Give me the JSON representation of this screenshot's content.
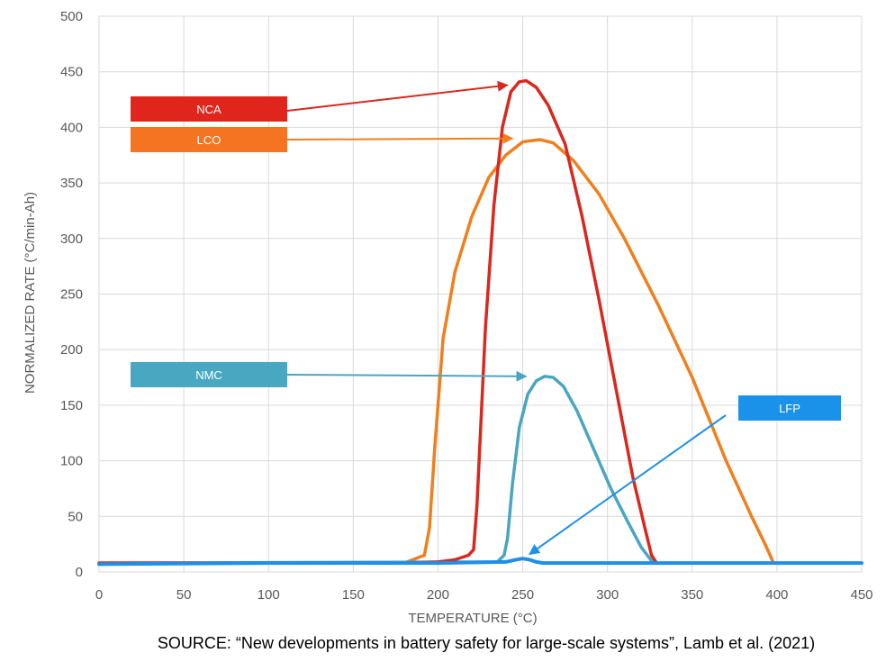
{
  "chart_data": {
    "type": "line",
    "title": "",
    "xlabel": "TEMPERATURE (°C)",
    "ylabel": "NORMALIZED RATE (°C/min-Ah)",
    "xlim": [
      0,
      450
    ],
    "ylim": [
      0,
      500
    ],
    "x_ticks": [
      0,
      50,
      100,
      150,
      200,
      250,
      300,
      350,
      400,
      450
    ],
    "y_ticks": [
      0,
      50,
      100,
      150,
      200,
      250,
      300,
      350,
      400,
      450,
      500
    ],
    "grid": true,
    "legend": "callout labels with arrows",
    "source": "SOURCE: “New developments in battery safety for large-scale systems”, Lamb et al. (2021)",
    "series": [
      {
        "name": "NCA",
        "color": "#d9281e",
        "label_color": "#e0261c",
        "x": [
          0,
          180,
          200,
          210,
          218,
          221,
          223,
          228,
          233,
          238,
          243,
          248,
          252,
          258,
          265,
          275,
          285,
          295,
          305,
          315,
          322,
          326,
          329
        ],
        "y": [
          8,
          8,
          9,
          11,
          15,
          20,
          60,
          220,
          330,
          400,
          432,
          441,
          442,
          436,
          420,
          385,
          320,
          245,
          165,
          85,
          40,
          15,
          8
        ]
      },
      {
        "name": "LCO",
        "color": "#f07f1d",
        "label_color": "#f57421",
        "x": [
          0,
          180,
          192,
          195,
          198,
          203,
          210,
          220,
          230,
          240,
          250,
          260,
          268,
          280,
          295,
          310,
          330,
          350,
          370,
          385,
          393,
          398
        ],
        "y": [
          8,
          8,
          15,
          40,
          110,
          210,
          270,
          320,
          355,
          375,
          387,
          389,
          386,
          370,
          340,
          300,
          240,
          175,
          100,
          50,
          25,
          8
        ]
      },
      {
        "name": "NMC",
        "color": "#4aa6c0",
        "label_color": "#48a8c1",
        "x": [
          0,
          235,
          239,
          241,
          244,
          248,
          253,
          258,
          263,
          268,
          274,
          282,
          292,
          302,
          312,
          320,
          327
        ],
        "y": [
          8,
          9,
          15,
          30,
          80,
          130,
          160,
          172,
          176,
          175,
          167,
          145,
          110,
          75,
          45,
          22,
          8
        ]
      },
      {
        "name": "LFP",
        "color": "#1f8fe8",
        "label_color": "#1a92ea",
        "x": [
          0,
          100,
          200,
          240,
          246,
          250,
          254,
          258,
          262,
          300,
          400,
          450
        ],
        "y": [
          7,
          8,
          8,
          9,
          11,
          12,
          11,
          9,
          8,
          8,
          8,
          8
        ]
      }
    ],
    "callouts": [
      {
        "label": "NCA",
        "arrow_to": [
          241,
          438
        ]
      },
      {
        "label": "LCO",
        "arrow_to": [
          244,
          390
        ]
      },
      {
        "label": "NMC",
        "arrow_to": [
          252,
          176
        ]
      },
      {
        "label": "LFP",
        "arrow_to": [
          254,
          16
        ]
      }
    ]
  }
}
